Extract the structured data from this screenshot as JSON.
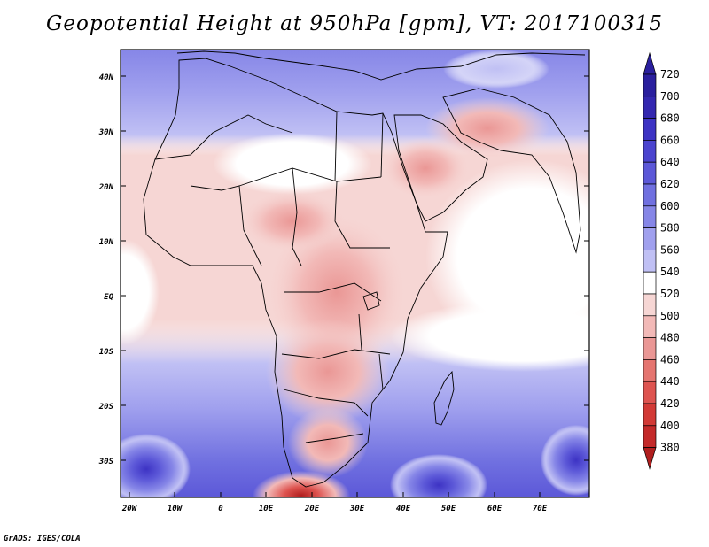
{
  "title": "Geopotential Height at 950hPa [gpm], VT: 2017100315",
  "map": {
    "region": "Africa and Arabian Peninsula",
    "lon_range": [
      -25,
      80
    ],
    "lat_range": [
      -37,
      46
    ],
    "lat_ticks": [
      "40N",
      "30N",
      "20N",
      "10N",
      "EQ",
      "10S",
      "20S",
      "30S"
    ],
    "lon_ticks": [
      "20W",
      "10W",
      "0",
      "10E",
      "20E",
      "30E",
      "40E",
      "50E",
      "60E",
      "70E"
    ]
  },
  "colorbar": {
    "unit": "gpm",
    "levels": [
      "720",
      "700",
      "680",
      "660",
      "640",
      "620",
      "600",
      "580",
      "560",
      "540",
      "520",
      "500",
      "480",
      "460",
      "440",
      "420",
      "400",
      "380"
    ],
    "colors": [
      "#2a1f9e",
      "#3327b0",
      "#3d33c4",
      "#4b44cf",
      "#5c58d8",
      "#7070e0",
      "#8686e7",
      "#a0a0ee",
      "#c0c0f4",
      "#ffffff",
      "#f6d6d4",
      "#f2b9b7",
      "#ea9795",
      "#e57570",
      "#de5450",
      "#d23a36",
      "#c42a2a",
      "#b01e1e"
    ]
  },
  "credit": "GrADS: IGES/COLA"
}
